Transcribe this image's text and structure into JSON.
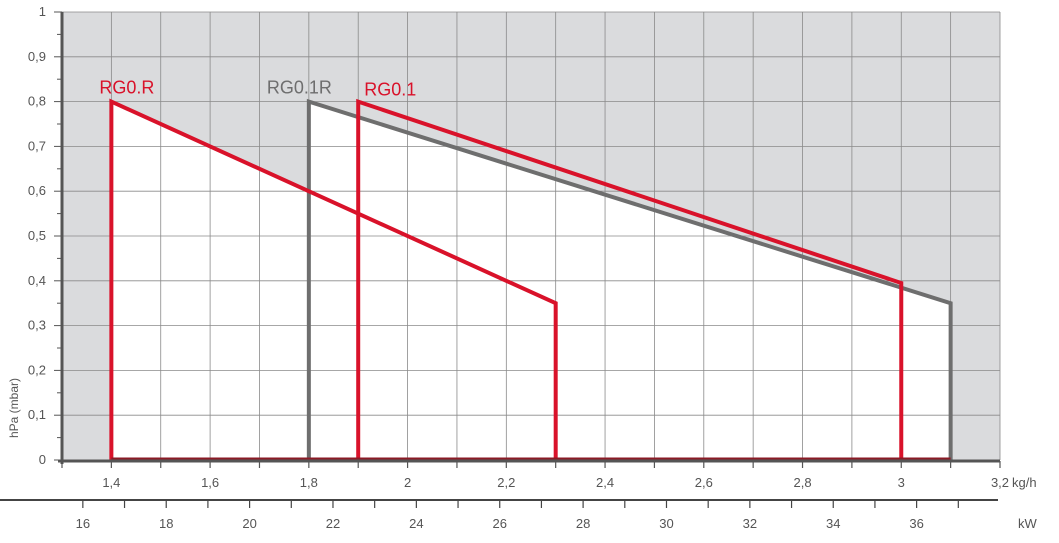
{
  "chart_data": {
    "type": "area",
    "ylabel": "hPa (mbar)",
    "x_unit": "kg/h",
    "x2_unit": "kW",
    "xlim": [
      1.3,
      3.2
    ],
    "ylim": [
      0,
      1
    ],
    "x2lim": [
      15.5,
      38
    ],
    "y_ticks": [
      {
        "v": 0,
        "t": "0"
      },
      {
        "v": 0.1,
        "t": "0,1"
      },
      {
        "v": 0.2,
        "t": "0,2"
      },
      {
        "v": 0.3,
        "t": "0,3"
      },
      {
        "v": 0.4,
        "t": "0,4"
      },
      {
        "v": 0.5,
        "t": "0,5"
      },
      {
        "v": 0.6,
        "t": "0,6"
      },
      {
        "v": 0.7,
        "t": "0,7"
      },
      {
        "v": 0.8,
        "t": "0,8"
      },
      {
        "v": 0.9,
        "t": "0,9"
      },
      {
        "v": 1,
        "t": "1"
      }
    ],
    "x_ticks": [
      {
        "v": 1.4,
        "t": "1,4"
      },
      {
        "v": 1.6,
        "t": "1,6"
      },
      {
        "v": 1.8,
        "t": "1,8"
      },
      {
        "v": 2.0,
        "t": "2"
      },
      {
        "v": 2.2,
        "t": "2,2"
      },
      {
        "v": 2.4,
        "t": "2,4"
      },
      {
        "v": 2.6,
        "t": "2,6"
      },
      {
        "v": 2.8,
        "t": "2,8"
      },
      {
        "v": 3.0,
        "t": "3"
      },
      {
        "v": 3.2,
        "t": "3,2"
      }
    ],
    "x2_ticks": [
      {
        "v": 16,
        "t": "16"
      },
      {
        "v": 18,
        "t": "18"
      },
      {
        "v": 20,
        "t": "20"
      },
      {
        "v": 22,
        "t": "22"
      },
      {
        "v": 24,
        "t": "24"
      },
      {
        "v": 26,
        "t": "26"
      },
      {
        "v": 28,
        "t": "28"
      },
      {
        "v": 30,
        "t": "30"
      },
      {
        "v": 32,
        "t": "32"
      },
      {
        "v": 34,
        "t": "34"
      },
      {
        "v": 36,
        "t": "36"
      }
    ],
    "series": [
      {
        "name": "RG0.R",
        "color": "#d9122a",
        "points": [
          [
            1.4,
            0
          ],
          [
            1.4,
            0.8
          ],
          [
            2.3,
            0.35
          ],
          [
            2.3,
            0
          ]
        ]
      },
      {
        "name": "RG0.1R",
        "color": "#6e6e6e",
        "points": [
          [
            1.8,
            0
          ],
          [
            1.8,
            0.8
          ],
          [
            3.1,
            0.35
          ],
          [
            3.1,
            0
          ]
        ]
      },
      {
        "name": "RG0.1",
        "color": "#d9122a",
        "points": [
          [
            1.9,
            0
          ],
          [
            1.9,
            0.8
          ],
          [
            3.0,
            0.395
          ],
          [
            3.0,
            0
          ]
        ]
      }
    ],
    "colors": {
      "background": "#dadbdd",
      "grid": "#8a8a8a",
      "axis": "#555555",
      "envelope": "#ffffff"
    }
  }
}
